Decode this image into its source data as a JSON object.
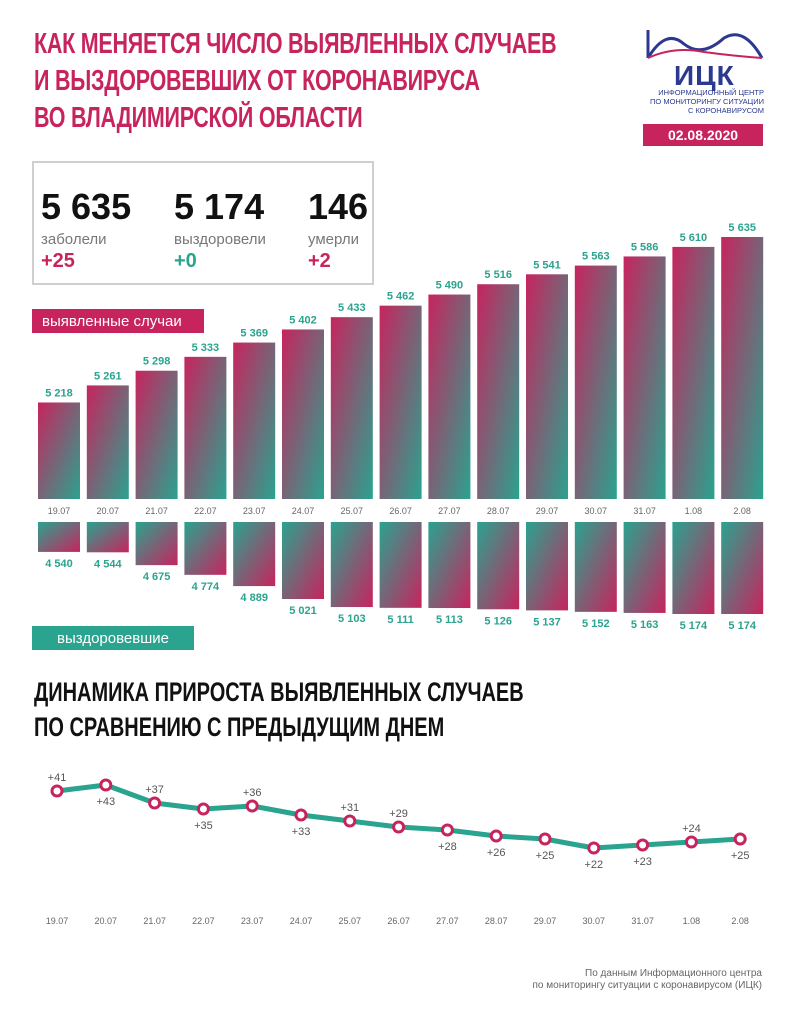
{
  "header": {
    "title_lines": [
      "КАК МЕНЯЕТСЯ ЧИСЛО ВЫЯВЛЕННЫХ СЛУЧАЕВ",
      "И ВЫЗДОРОВЕВШИХ ОТ КОРОНАВИРУСА",
      "ВО ВЛАДИМИРСКОЙ ОБЛАСТИ"
    ],
    "logo_text": "ИЦК",
    "logo_subtitle": "ИНФОРМАЦИОННЫЙ ЦЕНТР ПО МОНИТОРИНГУ СИТУАЦИИ С КОРОНАВИРУСОМ",
    "date": "02.08.2020"
  },
  "summary": {
    "cases": {
      "value": "5 635",
      "label": "заболели",
      "change": "+25"
    },
    "recovered": {
      "value": "5 174",
      "label": "выздоровели",
      "change": "+0"
    },
    "deaths": {
      "value": "146",
      "label": "умерли",
      "change": "+2"
    }
  },
  "labels": {
    "cases_series": "выявленные случаи",
    "recovered_series": "выздоровевшие"
  },
  "subtitle_lines": [
    "ДИНАМИКА ПРИРОСТА ВЫЯВЛЕННЫХ СЛУЧАЕВ",
    "ПО СРАВНЕНИЮ С ПРЕДЫДУЩИМ ДНЕМ"
  ],
  "footer_lines": [
    "По данным Информационного центра",
    "по мониторингу ситуации с коронавирусом (ИЦК)"
  ],
  "colors": {
    "accent": "#c7245e",
    "teal": "#2aa38f",
    "logo_blue": "#2b3990"
  },
  "chart_data": [
    {
      "type": "bar",
      "categories": [
        "19.07",
        "20.07",
        "21.07",
        "22.07",
        "23.07",
        "24.07",
        "25.07",
        "26.07",
        "27.07",
        "28.07",
        "29.07",
        "30.07",
        "31.07",
        "1.08",
        "2.08"
      ],
      "series": [
        {
          "name": "выявленные случаи",
          "values": [
            5218,
            5261,
            5298,
            5333,
            5369,
            5402,
            5433,
            5462,
            5490,
            5516,
            5541,
            5563,
            5586,
            5610,
            5635
          ],
          "labels": [
            "5 218",
            "5 261",
            "5 298",
            "5 333",
            "5 369",
            "5 402",
            "5 433",
            "5 462",
            "5 490",
            "5 516",
            "5 541",
            "5 563",
            "5 586",
            "5 610",
            "5 635"
          ]
        },
        {
          "name": "выздоровевшие",
          "values": [
            4540,
            4544,
            4675,
            4774,
            4889,
            5021,
            5103,
            5111,
            5113,
            5126,
            5137,
            5152,
            5163,
            5174,
            5174
          ],
          "labels": [
            "4 540",
            "4 544",
            "4 675",
            "4 774",
            "4 889",
            "5 021",
            "5 103",
            "5 111",
            "5 113",
            "5 126",
            "5 137",
            "5 152",
            "5 163",
            "5 174",
            "5 174"
          ]
        }
      ]
    },
    {
      "type": "line",
      "categories": [
        "19.07",
        "20.07",
        "21.07",
        "22.07",
        "23.07",
        "24.07",
        "25.07",
        "26.07",
        "27.07",
        "28.07",
        "29.07",
        "30.07",
        "31.07",
        "1.08",
        "2.08"
      ],
      "series": [
        {
          "values": [
            41,
            43,
            37,
            35,
            36,
            33,
            31,
            29,
            28,
            26,
            25,
            22,
            23,
            24,
            25
          ],
          "labels": [
            "+41",
            "+43",
            "+37",
            "+35",
            "+36",
            "+33",
            "+31",
            "+29",
            "+28",
            "+26",
            "+25",
            "+22",
            "+23",
            "+24",
            "+25"
          ]
        }
      ]
    }
  ]
}
